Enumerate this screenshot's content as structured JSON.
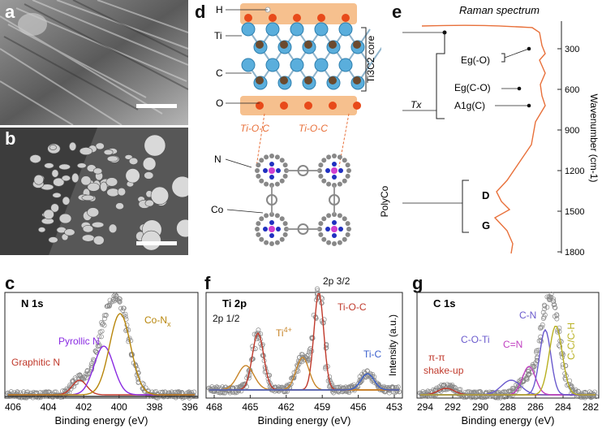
{
  "panels": {
    "a": {
      "letter": "a"
    },
    "b": {
      "letter": "b"
    },
    "d": {
      "letter": "d",
      "atom_labels": [
        "H",
        "Ti",
        "C",
        "O",
        "N",
        "Co"
      ],
      "core_label": "Ti3C2 core",
      "tx_label": "Tx",
      "link_labels": [
        "Ti-O-C",
        "Ti-O-C"
      ],
      "polyco_label": "PolyCo"
    },
    "e": {
      "letter": "e",
      "title": "Raman spectrum",
      "axis_label": "Wavenumber (cm-1)",
      "ticks": [
        "300",
        "600",
        "900",
        "1200",
        "1500",
        "1800"
      ],
      "peak_labels": [
        "Eg(-O)",
        "Eg(C-O)",
        "A1g(C)",
        "D",
        "G"
      ]
    },
    "c": {
      "letter": "c",
      "title": "N 1s",
      "xlabel": "Binding energy (eV)",
      "ticks": [
        "406",
        "404",
        "402",
        "400",
        "398",
        "396"
      ],
      "labels": [
        "Co-Nx",
        "Pyrollic N",
        "Graphitic N"
      ]
    },
    "f": {
      "letter": "f",
      "title": "Ti 2p",
      "xlabel": "Binding energy (eV)",
      "ticks": [
        "468",
        "465",
        "462",
        "459",
        "456",
        "453"
      ],
      "labels": [
        "2p 3/2",
        "2p 1/2",
        "Ti4+",
        "Ti-O-C",
        "Ti-C"
      ],
      "ylabel": "Intensity (a.u.)"
    },
    "g": {
      "letter": "g",
      "title": "C 1s",
      "xlabel": "Binding energy (eV)",
      "ticks": [
        "294",
        "292",
        "290",
        "288",
        "286",
        "284",
        "282"
      ],
      "labels": [
        "C-N",
        "C-O-Ti",
        "C=N",
        "C-C/C-H",
        "π-π",
        "shake-up"
      ]
    }
  },
  "colors": {
    "raman": "#e8703a",
    "orange_band": "#f6c08e",
    "graphitic": "#c0392b",
    "pyrollic": "#8a2be2",
    "conx": "#b8860b",
    "ti4": "#c8862a",
    "tioc": "#c0392b",
    "tic": "#3a5fcd",
    "cn": "#6a5acd",
    "coti": "#6a5acd",
    "ceqn": "#c03fc0",
    "cc": "#b8b020",
    "shake": "#c0392b"
  }
}
